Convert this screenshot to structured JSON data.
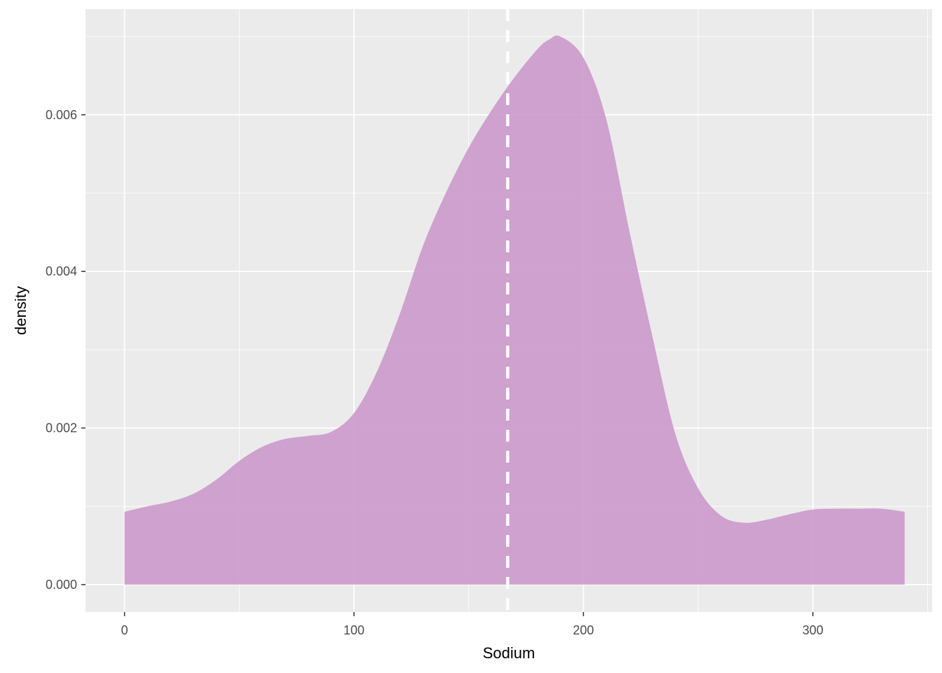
{
  "chart_data": {
    "type": "area",
    "subtype": "density",
    "title": "",
    "xlabel": "Sodium",
    "ylabel": "density",
    "xlim": [
      -17,
      352
    ],
    "ylim": [
      -0.00035,
      0.00735
    ],
    "x_ticks": [
      0,
      100,
      200,
      300
    ],
    "x_tick_labels": [
      "0",
      "100",
      "200",
      "300"
    ],
    "y_ticks": [
      0.0,
      0.002,
      0.004,
      0.006
    ],
    "y_tick_labels": [
      "0.000",
      "0.002",
      "0.004",
      "0.006"
    ],
    "x_minor_ticks": [
      50,
      150,
      250,
      350
    ],
    "y_minor_ticks": [
      0.001,
      0.003,
      0.005,
      0.007
    ],
    "grid": true,
    "legend": "none",
    "fill_color": "#CC99CC",
    "panel_background": "#EBEBEB",
    "grid_color": "#FFFFFF",
    "series": [
      {
        "x": [
          0,
          10,
          20,
          30,
          40,
          50,
          60,
          70,
          80,
          90,
          100,
          110,
          120,
          130,
          140,
          150,
          160,
          170,
          180,
          185,
          190,
          200,
          210,
          220,
          230,
          240,
          250,
          260,
          270,
          280,
          290,
          300,
          310,
          320,
          330,
          340
        ],
        "y": [
          0.00093,
          0.001,
          0.00106,
          0.00116,
          0.00134,
          0.00158,
          0.00176,
          0.00186,
          0.0019,
          0.00195,
          0.00219,
          0.00272,
          0.00346,
          0.00432,
          0.005,
          0.00558,
          0.00606,
          0.00648,
          0.00684,
          0.00696,
          0.007,
          0.00673,
          0.00594,
          0.00452,
          0.00318,
          0.00193,
          0.00123,
          0.00088,
          0.00079,
          0.00083,
          0.0009,
          0.00096,
          0.00097,
          0.00097,
          0.00097,
          0.00093
        ]
      }
    ],
    "reference_line": {
      "x": 167,
      "style": "dashed",
      "color": "#FFFFFF"
    }
  }
}
